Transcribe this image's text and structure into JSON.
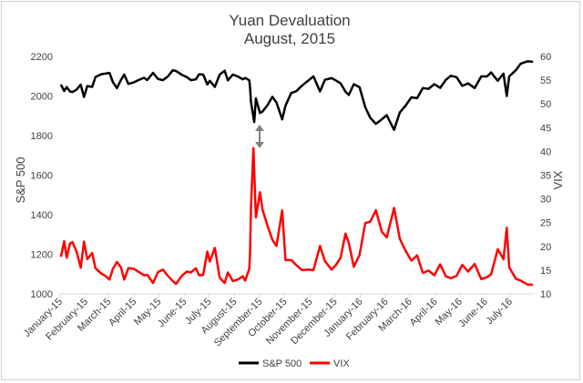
{
  "chart_data": {
    "type": "line",
    "title": "Yuan Devaluation",
    "subtitle": "August, 2015",
    "left_axis": {
      "label": "S&P 500",
      "min": 1000,
      "max": 2200,
      "ticks": [
        1000,
        1200,
        1400,
        1600,
        1800,
        2000,
        2200
      ]
    },
    "right_axis": {
      "label": "VIX",
      "min": 10,
      "max": 60,
      "ticks": [
        10,
        15,
        20,
        25,
        30,
        35,
        40,
        45,
        50,
        55,
        60
      ]
    },
    "x_range": [
      "2015-01-01",
      "2016-07-31"
    ],
    "categories": [
      "January-15",
      "February-15",
      "March-15",
      "April-15",
      "May-15",
      "June-15",
      "July-15",
      "August-15",
      "September-15",
      "October-15",
      "November-15",
      "December-15",
      "January-16",
      "February-16",
      "March-16",
      "April-16",
      "May-16",
      "June-16",
      "July-16"
    ],
    "legend_position": "bottom",
    "grid": false,
    "series": [
      {
        "name": "S&P 500",
        "axis": "left",
        "color": "#000000",
        "points": [
          [
            "2015-01-02",
            2058
          ],
          [
            "2015-01-06",
            2025
          ],
          [
            "2015-01-09",
            2045
          ],
          [
            "2015-01-13",
            2023
          ],
          [
            "2015-01-16",
            2020
          ],
          [
            "2015-01-21",
            2032
          ],
          [
            "2015-01-26",
            2057
          ],
          [
            "2015-01-30",
            1995
          ],
          [
            "2015-02-03",
            2050
          ],
          [
            "2015-02-09",
            2046
          ],
          [
            "2015-02-13",
            2096
          ],
          [
            "2015-02-20",
            2110
          ],
          [
            "2015-02-25",
            2113
          ],
          [
            "2015-03-02",
            2117
          ],
          [
            "2015-03-06",
            2071
          ],
          [
            "2015-03-11",
            2040
          ],
          [
            "2015-03-16",
            2081
          ],
          [
            "2015-03-20",
            2108
          ],
          [
            "2015-03-25",
            2061
          ],
          [
            "2015-03-31",
            2068
          ],
          [
            "2015-04-06",
            2080
          ],
          [
            "2015-04-13",
            2092
          ],
          [
            "2015-04-17",
            2081
          ],
          [
            "2015-04-24",
            2117
          ],
          [
            "2015-04-30",
            2086
          ],
          [
            "2015-05-06",
            2080
          ],
          [
            "2015-05-12",
            2099
          ],
          [
            "2015-05-18",
            2130
          ],
          [
            "2015-05-22",
            2126
          ],
          [
            "2015-05-29",
            2107
          ],
          [
            "2015-06-04",
            2095
          ],
          [
            "2015-06-09",
            2080
          ],
          [
            "2015-06-15",
            2084
          ],
          [
            "2015-06-19",
            2110
          ],
          [
            "2015-06-24",
            2108
          ],
          [
            "2015-06-29",
            2058
          ],
          [
            "2015-07-02",
            2077
          ],
          [
            "2015-07-08",
            2046
          ],
          [
            "2015-07-14",
            2108
          ],
          [
            "2015-07-20",
            2128
          ],
          [
            "2015-07-24",
            2079
          ],
          [
            "2015-07-30",
            2108
          ],
          [
            "2015-08-05",
            2099
          ],
          [
            "2015-08-11",
            2084
          ],
          [
            "2015-08-14",
            2091
          ],
          [
            "2015-08-19",
            2079
          ],
          [
            "2015-08-20",
            2036
          ],
          [
            "2015-08-21",
            1971
          ],
          [
            "2015-08-24",
            1893
          ],
          [
            "2015-08-25",
            1868
          ],
          [
            "2015-08-27",
            1988
          ],
          [
            "2015-09-01",
            1914
          ],
          [
            "2015-09-04",
            1921
          ],
          [
            "2015-09-10",
            1952
          ],
          [
            "2015-09-16",
            1996
          ],
          [
            "2015-09-21",
            1967
          ],
          [
            "2015-09-28",
            1882
          ],
          [
            "2015-10-02",
            1951
          ],
          [
            "2015-10-09",
            2015
          ],
          [
            "2015-10-15",
            2024
          ],
          [
            "2015-10-22",
            2052
          ],
          [
            "2015-10-30",
            2079
          ],
          [
            "2015-11-05",
            2099
          ],
          [
            "2015-11-13",
            2023
          ],
          [
            "2015-11-19",
            2082
          ],
          [
            "2015-11-27",
            2090
          ],
          [
            "2015-12-02",
            2079
          ],
          [
            "2015-12-08",
            2064
          ],
          [
            "2015-12-14",
            2021
          ],
          [
            "2015-12-18",
            2005
          ],
          [
            "2015-12-24",
            2060
          ],
          [
            "2015-12-31",
            2044
          ],
          [
            "2016-01-07",
            1943
          ],
          [
            "2016-01-13",
            1890
          ],
          [
            "2016-01-20",
            1859
          ],
          [
            "2016-01-27",
            1882
          ],
          [
            "2016-02-02",
            1903
          ],
          [
            "2016-02-08",
            1853
          ],
          [
            "2016-02-11",
            1829
          ],
          [
            "2016-02-18",
            1917
          ],
          [
            "2016-02-25",
            1951
          ],
          [
            "2016-03-03",
            1993
          ],
          [
            "2016-03-10",
            1989
          ],
          [
            "2016-03-17",
            2040
          ],
          [
            "2016-03-24",
            2036
          ],
          [
            "2016-03-31",
            2060
          ],
          [
            "2016-04-07",
            2041
          ],
          [
            "2016-04-14",
            2082
          ],
          [
            "2016-04-20",
            2102
          ],
          [
            "2016-04-27",
            2095
          ],
          [
            "2016-05-04",
            2051
          ],
          [
            "2016-05-11",
            2064
          ],
          [
            "2016-05-19",
            2040
          ],
          [
            "2016-05-27",
            2099
          ],
          [
            "2016-06-03",
            2099
          ],
          [
            "2016-06-08",
            2119
          ],
          [
            "2016-06-16",
            2077
          ],
          [
            "2016-06-23",
            2113
          ],
          [
            "2016-06-27",
            2000
          ],
          [
            "2016-06-30",
            2099
          ],
          [
            "2016-07-08",
            2130
          ],
          [
            "2016-07-14",
            2163
          ],
          [
            "2016-07-22",
            2175
          ],
          [
            "2016-07-29",
            2173
          ]
        ]
      },
      {
        "name": "VIX",
        "axis": "right",
        "color": "#ff0000",
        "points": [
          [
            "2015-01-02",
            17.8
          ],
          [
            "2015-01-06",
            21.1
          ],
          [
            "2015-01-09",
            17.6
          ],
          [
            "2015-01-13",
            20.6
          ],
          [
            "2015-01-16",
            20.9
          ],
          [
            "2015-01-21",
            18.9
          ],
          [
            "2015-01-26",
            15.5
          ],
          [
            "2015-01-30",
            21.0
          ],
          [
            "2015-02-03",
            17.3
          ],
          [
            "2015-02-09",
            18.6
          ],
          [
            "2015-02-13",
            15.4
          ],
          [
            "2015-02-20",
            14.3
          ],
          [
            "2015-02-25",
            13.8
          ],
          [
            "2015-03-02",
            13.0
          ],
          [
            "2015-03-06",
            15.2
          ],
          [
            "2015-03-11",
            16.7
          ],
          [
            "2015-03-16",
            15.6
          ],
          [
            "2015-03-20",
            13.0
          ],
          [
            "2015-03-25",
            15.4
          ],
          [
            "2015-03-31",
            15.3
          ],
          [
            "2015-04-06",
            14.7
          ],
          [
            "2015-04-13",
            13.9
          ],
          [
            "2015-04-17",
            14.0
          ],
          [
            "2015-04-24",
            12.3
          ],
          [
            "2015-04-30",
            14.6
          ],
          [
            "2015-05-06",
            15.1
          ],
          [
            "2015-05-12",
            13.8
          ],
          [
            "2015-05-18",
            12.7
          ],
          [
            "2015-05-22",
            12.1
          ],
          [
            "2015-05-29",
            13.8
          ],
          [
            "2015-06-04",
            14.7
          ],
          [
            "2015-06-09",
            14.5
          ],
          [
            "2015-06-15",
            15.4
          ],
          [
            "2015-06-19",
            13.9
          ],
          [
            "2015-06-24",
            14.0
          ],
          [
            "2015-06-29",
            18.9
          ],
          [
            "2015-07-02",
            16.8
          ],
          [
            "2015-07-08",
            19.7
          ],
          [
            "2015-07-14",
            13.4
          ],
          [
            "2015-07-20",
            12.3
          ],
          [
            "2015-07-24",
            14.5
          ],
          [
            "2015-07-30",
            12.7
          ],
          [
            "2015-08-05",
            13.0
          ],
          [
            "2015-08-11",
            13.7
          ],
          [
            "2015-08-14",
            12.8
          ],
          [
            "2015-08-19",
            15.3
          ],
          [
            "2015-08-20",
            19.1
          ],
          [
            "2015-08-21",
            28.0
          ],
          [
            "2015-08-24",
            40.7
          ],
          [
            "2015-08-25",
            36.0
          ],
          [
            "2015-08-27",
            26.1
          ],
          [
            "2015-09-01",
            31.4
          ],
          [
            "2015-09-04",
            27.8
          ],
          [
            "2015-09-10",
            24.4
          ],
          [
            "2015-09-16",
            21.4
          ],
          [
            "2015-09-21",
            20.1
          ],
          [
            "2015-09-28",
            27.6
          ],
          [
            "2015-10-02",
            17.1
          ],
          [
            "2015-10-09",
            17.1
          ],
          [
            "2015-10-15",
            16.1
          ],
          [
            "2015-10-22",
            15.0
          ],
          [
            "2015-10-30",
            15.1
          ],
          [
            "2015-11-05",
            15.0
          ],
          [
            "2015-11-13",
            20.1
          ],
          [
            "2015-11-19",
            16.9
          ],
          [
            "2015-11-27",
            15.1
          ],
          [
            "2015-12-02",
            16.0
          ],
          [
            "2015-12-08",
            17.6
          ],
          [
            "2015-12-14",
            22.7
          ],
          [
            "2015-12-18",
            20.7
          ],
          [
            "2015-12-24",
            15.7
          ],
          [
            "2015-12-31",
            18.2
          ],
          [
            "2016-01-07",
            24.9
          ],
          [
            "2016-01-13",
            25.2
          ],
          [
            "2016-01-20",
            27.6
          ],
          [
            "2016-01-27",
            23.1
          ],
          [
            "2016-02-02",
            21.9
          ],
          [
            "2016-02-08",
            26.0
          ],
          [
            "2016-02-11",
            28.1
          ],
          [
            "2016-02-18",
            21.6
          ],
          [
            "2016-02-25",
            19.1
          ],
          [
            "2016-03-03",
            17.0
          ],
          [
            "2016-03-10",
            18.1
          ],
          [
            "2016-03-17",
            14.4
          ],
          [
            "2016-03-24",
            14.9
          ],
          [
            "2016-03-31",
            13.9
          ],
          [
            "2016-04-07",
            16.2
          ],
          [
            "2016-04-14",
            13.7
          ],
          [
            "2016-04-20",
            13.3
          ],
          [
            "2016-04-27",
            13.8
          ],
          [
            "2016-05-04",
            16.1
          ],
          [
            "2016-05-11",
            14.7
          ],
          [
            "2016-05-19",
            16.3
          ],
          [
            "2016-05-27",
            13.1
          ],
          [
            "2016-06-03",
            13.5
          ],
          [
            "2016-06-08",
            14.1
          ],
          [
            "2016-06-16",
            19.4
          ],
          [
            "2016-06-23",
            17.3
          ],
          [
            "2016-06-27",
            23.9
          ],
          [
            "2016-06-30",
            15.6
          ],
          [
            "2016-07-08",
            13.2
          ],
          [
            "2016-07-14",
            12.8
          ],
          [
            "2016-07-22",
            12.0
          ],
          [
            "2016-07-29",
            11.9
          ]
        ]
      }
    ]
  }
}
